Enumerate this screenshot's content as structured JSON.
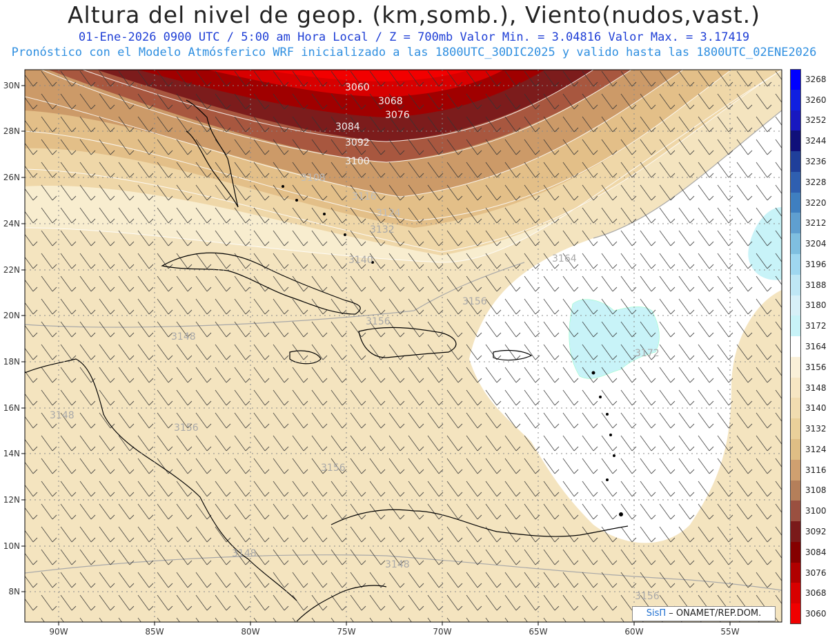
{
  "header": {
    "title": "Altura del nivel de geop. (km,somb.), Viento(nudos,vast.)",
    "line1": "01-Ene-2026  0900 UTC / 5:00 am Hora Local / Z = 700mb    Valor Min. = 3.04816  Valor Max. = 3.17419",
    "line2": "Pronóstico con el Modelo Atmósferico WRF inicializado a las 1800UTC_30DIC2025 y valido hasta las  1800UTC_02ENE2026"
  },
  "map": {
    "lon_ticks": [
      "90W",
      "85W",
      "80W",
      "75W",
      "70W",
      "65W",
      "60W",
      "55W"
    ],
    "lat_ticks": [
      "30N",
      "28N",
      "26N",
      "24N",
      "22N",
      "20N",
      "18N",
      "16N",
      "14N",
      "12N",
      "10N",
      "8N"
    ],
    "contour_labels": [
      "3060",
      "3068",
      "3076",
      "3084",
      "3092",
      "3100",
      "3108",
      "3116",
      "3124",
      "3132",
      "3140",
      "3148",
      "3156",
      "3164",
      "3172",
      "3148",
      "3156",
      "3156",
      "3148",
      "3148",
      "3156",
      "3156"
    ]
  },
  "legend": {
    "levels": [
      "3268",
      "3260",
      "3252",
      "3244",
      "3236",
      "3228",
      "3220",
      "3212",
      "3204",
      "3196",
      "3188",
      "3180",
      "3172",
      "3164",
      "3156",
      "3148",
      "3140",
      "3132",
      "3124",
      "3116",
      "3108",
      "3100",
      "3092",
      "3084",
      "3076",
      "3068",
      "3060"
    ],
    "colors": [
      "#0000ff",
      "#1020e0",
      "#1818c0",
      "#10107a",
      "#1f3f9a",
      "#2f5fb0",
      "#3f7fc0",
      "#5f9fd0",
      "#7fbfe0",
      "#9fd7f0",
      "#bfe7f5",
      "#d7f0f8",
      "#c8f3f8",
      "#ffffff",
      "#faf0d8",
      "#f6e6c3",
      "#f1dcb0",
      "#ead09a",
      "#dfbe85",
      "#cfa070",
      "#b57f5a",
      "#9a5040",
      "#7a1a1a",
      "#850000",
      "#b00000",
      "#d80000",
      "#f00000"
    ]
  },
  "credit": {
    "logo": "SisΠ",
    "text": "– ONAMET/REP.DOM."
  }
}
